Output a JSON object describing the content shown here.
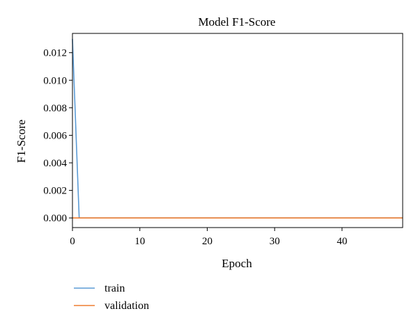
{
  "chart_data": {
    "type": "line",
    "title": "Model F1-Score",
    "xlabel": "Epoch",
    "ylabel": "F1-Score",
    "xlim": [
      0,
      49
    ],
    "ylim": [
      -0.0007,
      0.0134
    ],
    "x_ticks": [
      0,
      10,
      20,
      30,
      40
    ],
    "y_ticks": [
      0.0,
      0.002,
      0.004,
      0.006,
      0.008,
      0.01,
      0.012
    ],
    "y_tick_labels": [
      "0.000",
      "0.002",
      "0.004",
      "0.006",
      "0.008",
      "0.010",
      "0.012"
    ],
    "grid": false,
    "legend_position": "bottom-left, below plot",
    "series": [
      {
        "name": "train",
        "color": "#5b9bd5",
        "x": [
          0,
          1,
          2,
          3,
          4,
          5,
          6,
          7,
          8,
          9,
          10,
          11,
          12,
          13,
          14,
          15,
          16,
          17,
          18,
          19,
          20,
          21,
          22,
          23,
          24,
          25,
          26,
          27,
          28,
          29,
          30,
          31,
          32,
          33,
          34,
          35,
          36,
          37,
          38,
          39,
          40,
          41,
          42,
          43,
          44,
          45,
          46,
          47,
          48,
          49
        ],
        "y": [
          0.013,
          0,
          0,
          0,
          0,
          0,
          0,
          0,
          0,
          0,
          0,
          0,
          0,
          0,
          0,
          0,
          0,
          0,
          0,
          0,
          0,
          0,
          0,
          0,
          0,
          0,
          0,
          0,
          0,
          0,
          0,
          0,
          0,
          0,
          0,
          0,
          0,
          0,
          0,
          0,
          0,
          0,
          0,
          0,
          0,
          0,
          0,
          0,
          0,
          0
        ]
      },
      {
        "name": "validation",
        "color": "#ed7d31",
        "x": [
          0,
          1,
          2,
          3,
          4,
          5,
          6,
          7,
          8,
          9,
          10,
          11,
          12,
          13,
          14,
          15,
          16,
          17,
          18,
          19,
          20,
          21,
          22,
          23,
          24,
          25,
          26,
          27,
          28,
          29,
          30,
          31,
          32,
          33,
          34,
          35,
          36,
          37,
          38,
          39,
          40,
          41,
          42,
          43,
          44,
          45,
          46,
          47,
          48,
          49
        ],
        "y": [
          0,
          0,
          0,
          0,
          0,
          0,
          0,
          0,
          0,
          0,
          0,
          0,
          0,
          0,
          0,
          0,
          0,
          0,
          0,
          0,
          0,
          0,
          0,
          0,
          0,
          0,
          0,
          0,
          0,
          0,
          0,
          0,
          0,
          0,
          0,
          0,
          0,
          0,
          0,
          0,
          0,
          0,
          0,
          0,
          0,
          0,
          0,
          0,
          0,
          0
        ]
      }
    ]
  }
}
